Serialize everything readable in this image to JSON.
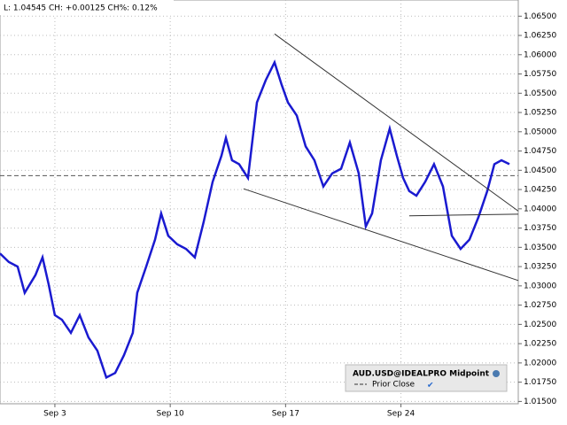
{
  "chart_data": {
    "type": "line",
    "header": "L: 1.04545 CH: +0.00125 CH%: 0.12%",
    "series": [
      {
        "name": "AUD.USD@IDEALPRO Midpoint",
        "color": "#1a1ad0",
        "x": [
          -0.33,
          0.2,
          0.74,
          1.17,
          1.82,
          2.25,
          2.62,
          3,
          3.43,
          3.97,
          4.51,
          5.04,
          5.58,
          6.12,
          6.66,
          7.19,
          7.73,
          8,
          8.54,
          9.08,
          9.45,
          9.88,
          10.42,
          10.96,
          11.49,
          12.03,
          12.57,
          13.11,
          13.38,
          13.75,
          14.18,
          14.72,
          15.26,
          15.8,
          16.33,
          16.76,
          17.14,
          17.68,
          18.22,
          18.75,
          19.29,
          19.83,
          20.37,
          20.9,
          21.44,
          21.87,
          22.25,
          22.78,
          23.32,
          23.75,
          24.13,
          24.5,
          24.94,
          25.47,
          26.01,
          26.55,
          27.09,
          27.62,
          28.16,
          28.7,
          29.24,
          29.67,
          30.1,
          30.58
        ],
        "values": [
          1.0342,
          1.0331,
          1.0325,
          1.0291,
          1.0314,
          1.0337,
          1.0302,
          1.0262,
          1.0256,
          1.0239,
          1.0262,
          1.0233,
          1.0216,
          1.0181,
          1.0187,
          1.021,
          1.0239,
          1.0291,
          1.0325,
          1.036,
          1.0394,
          1.0365,
          1.0354,
          1.0348,
          1.0337,
          1.0383,
          1.0435,
          1.0469,
          1.0492,
          1.0463,
          1.0458,
          1.044,
          1.0538,
          1.0567,
          1.059,
          1.0561,
          1.0538,
          1.0521,
          1.0481,
          1.0463,
          1.0429,
          1.0446,
          1.0452,
          1.0486,
          1.0446,
          1.0377,
          1.0394,
          1.0463,
          1.0504,
          1.0469,
          1.044,
          1.0423,
          1.0417,
          1.0435,
          1.0458,
          1.0429,
          1.0365,
          1.0348,
          1.036,
          1.0389,
          1.0423,
          1.0458,
          1.0463,
          1.0458
        ]
      }
    ],
    "prior_close": {
      "name": "Prior Close",
      "value": 1.0443,
      "color": "#555555"
    },
    "trendlines": [
      {
        "x": [
          16.33,
          31.12
        ],
        "y": [
          1.0627,
          1.0397
        ]
      },
      {
        "x": [
          14.45,
          31.12
        ],
        "y": [
          1.0426,
          1.0307
        ]
      },
      {
        "x": [
          24.5,
          31.12
        ],
        "y": [
          1.0391,
          1.0393
        ]
      }
    ],
    "xlim": [
      -0.33,
      31.12
    ],
    "ylim": [
      1.0147,
      1.0671
    ],
    "xticks": [
      {
        "value": 3,
        "label": "Sep 3"
      },
      {
        "value": 10,
        "label": "Sep 10"
      },
      {
        "value": 17,
        "label": "Sep 17"
      },
      {
        "value": 24,
        "label": "Sep 24"
      }
    ],
    "yticks": [
      {
        "value": 1.065,
        "label": "1.06500"
      },
      {
        "value": 1.0625,
        "label": "1.06250"
      },
      {
        "value": 1.06,
        "label": "1.06000"
      },
      {
        "value": 1.0575,
        "label": "1.05750"
      },
      {
        "value": 1.055,
        "label": "1.05500"
      },
      {
        "value": 1.0525,
        "label": "1.05250"
      },
      {
        "value": 1.05,
        "label": "1.05000"
      },
      {
        "value": 1.0475,
        "label": "1.04750"
      },
      {
        "value": 1.045,
        "label": "1.04500"
      },
      {
        "value": 1.0425,
        "label": "1.04250"
      },
      {
        "value": 1.04,
        "label": "1.04000"
      },
      {
        "value": 1.0375,
        "label": "1.03750"
      },
      {
        "value": 1.035,
        "label": "1.03500"
      },
      {
        "value": 1.0325,
        "label": "1.03250"
      },
      {
        "value": 1.03,
        "label": "1.03000"
      },
      {
        "value": 1.0275,
        "label": "1.02750"
      },
      {
        "value": 1.025,
        "label": "1.02500"
      },
      {
        "value": 1.0225,
        "label": "1.02250"
      },
      {
        "value": 1.02,
        "label": "1.02000"
      },
      {
        "value": 1.0175,
        "label": "1.01750"
      },
      {
        "value": 1.015,
        "label": "1.01500"
      }
    ],
    "grid": true
  }
}
